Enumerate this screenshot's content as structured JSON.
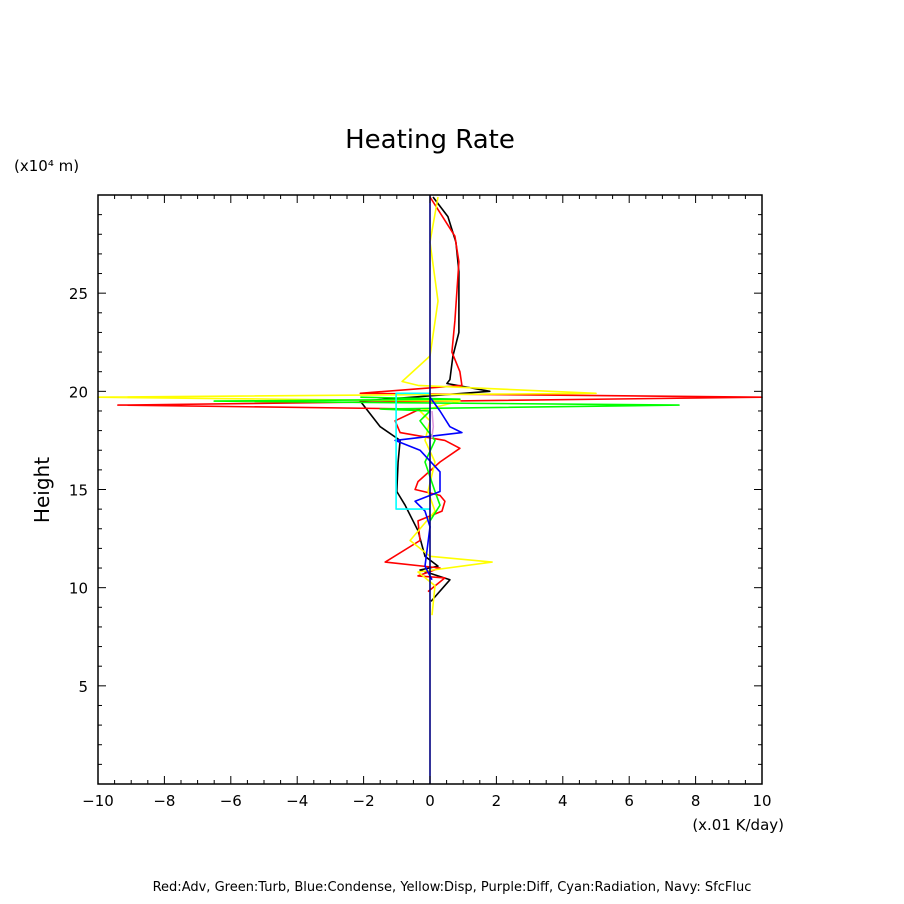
{
  "chart_data": {
    "type": "line",
    "title": "Heating Rate",
    "xlabel": "(x.01 K/day)",
    "ylabel": "Height",
    "y_unit_label": "(x10⁴ m)",
    "xlim": [
      -10,
      10
    ],
    "ylim": [
      0,
      30
    ],
    "xticks": [
      -10,
      -8,
      -6,
      -4,
      -2,
      0,
      2,
      4,
      6,
      8,
      10
    ],
    "xtick_labels": [
      "−10",
      "−8",
      "−6",
      "−4",
      "−2",
      "0",
      "2",
      "4",
      "6",
      "8",
      "10"
    ],
    "yticks": [
      5,
      10,
      15,
      20,
      25
    ],
    "ytick_labels": [
      "5",
      "10",
      "15",
      "20",
      "25"
    ],
    "grid": false,
    "legend_text": "Red:Adv, Green:Turb, Blue:Condense, Yellow:Disp, Purple:Diff, Cyan:Radiation, Navy: SfcFluc",
    "series": [
      {
        "name": "Black",
        "color": "#000000",
        "points": [
          [
            0.09,
            29.9
          ],
          [
            0.54,
            28.9
          ],
          [
            0.78,
            27.6
          ],
          [
            0.87,
            26.1
          ],
          [
            0.87,
            23.0
          ],
          [
            0.69,
            21.8
          ],
          [
            0.6,
            20.6
          ],
          [
            0.51,
            20.4
          ],
          [
            1.8,
            20.0
          ],
          [
            -2.1,
            19.5
          ],
          [
            -1.5,
            18.2
          ],
          [
            -0.9,
            17.5
          ],
          [
            -0.96,
            16.4
          ],
          [
            -1.0,
            14.9
          ],
          [
            -0.75,
            14.2
          ],
          [
            -0.36,
            12.9
          ],
          [
            -0.15,
            11.6
          ],
          [
            0.24,
            11.1
          ],
          [
            -0.3,
            10.9
          ],
          [
            0.6,
            10.4
          ],
          [
            0.03,
            9.3
          ]
        ]
      },
      {
        "name": "Adv",
        "color": "#ff0000",
        "points": [
          [
            0.0,
            29.9
          ],
          [
            0.3,
            29.1
          ],
          [
            0.75,
            27.9
          ],
          [
            0.87,
            26.6
          ],
          [
            0.75,
            23.6
          ],
          [
            0.66,
            22.0
          ],
          [
            0.9,
            21.0
          ],
          [
            0.96,
            20.3
          ],
          [
            -2.1,
            19.9
          ],
          [
            10,
            19.7
          ],
          [
            -9.4,
            19.3
          ],
          [
            -0.3,
            19.1
          ],
          [
            -1.05,
            18.5
          ],
          [
            -0.9,
            17.9
          ],
          [
            0.45,
            17.5
          ],
          [
            0.9,
            17.1
          ],
          [
            0.3,
            16.4
          ],
          [
            -0.36,
            15.4
          ],
          [
            -0.45,
            15.0
          ],
          [
            0.3,
            14.7
          ],
          [
            0.45,
            14.4
          ],
          [
            0.36,
            13.9
          ],
          [
            -0.36,
            13.4
          ],
          [
            -0.3,
            12.4
          ],
          [
            -1.35,
            11.3
          ],
          [
            0.3,
            11.0
          ],
          [
            -0.36,
            10.6
          ],
          [
            0.45,
            10.5
          ],
          [
            -0.06,
            9.8
          ]
        ]
      },
      {
        "name": "Disp",
        "color": "#ffff00",
        "points": [
          [
            0.24,
            29.9
          ],
          [
            0.0,
            27.6
          ],
          [
            0.24,
            24.6
          ],
          [
            0.0,
            21.8
          ],
          [
            -0.84,
            20.5
          ],
          [
            -0.36,
            20.3
          ],
          [
            5,
            19.9
          ],
          [
            -10,
            19.7
          ],
          [
            0.9,
            19.5
          ],
          [
            -0.3,
            19.0
          ],
          [
            0.0,
            18.5
          ],
          [
            -0.15,
            17.5
          ],
          [
            0.15,
            16.4
          ],
          [
            -0.06,
            14.9
          ],
          [
            0.15,
            13.9
          ],
          [
            -0.6,
            12.4
          ],
          [
            0.0,
            11.6
          ],
          [
            1.87,
            11.3
          ],
          [
            -0.36,
            10.8
          ],
          [
            0.15,
            10.1
          ],
          [
            0.06,
            8.6
          ]
        ]
      },
      {
        "name": "Turb",
        "color": "#00ff00",
        "points": [
          [
            -2.1,
            19.7
          ],
          [
            0.9,
            19.6
          ],
          [
            -6.5,
            19.5
          ],
          [
            7.5,
            19.3
          ],
          [
            -1.5,
            19.1
          ],
          [
            0.0,
            19.0
          ],
          [
            -0.3,
            18.5
          ],
          [
            0.15,
            17.5
          ],
          [
            -0.15,
            16.4
          ],
          [
            0.15,
            14.9
          ],
          [
            0.3,
            14.2
          ],
          [
            0.0,
            13.4
          ]
        ]
      },
      {
        "name": "Condense",
        "color": "#0000ff",
        "points": [
          [
            0.0,
            19.7
          ],
          [
            0.3,
            19.0
          ],
          [
            0.6,
            18.2
          ],
          [
            0.96,
            17.9
          ],
          [
            -1.05,
            17.5
          ],
          [
            -0.3,
            17.0
          ],
          [
            0.3,
            15.9
          ],
          [
            0.3,
            14.9
          ],
          [
            -0.45,
            14.4
          ],
          [
            -0.15,
            13.9
          ],
          [
            0.0,
            13.1
          ],
          [
            -0.15,
            11.1
          ],
          [
            0.06,
            10.4
          ]
        ]
      },
      {
        "name": "Diff",
        "color": "#dd99dd",
        "points": [
          [
            0.06,
            19.0
          ],
          [
            0.1,
            18.2
          ],
          [
            0.05,
            17.6
          ]
        ]
      },
      {
        "name": "Radiation",
        "color": "#00ffff",
        "points": [
          [
            0.0,
            19.9
          ],
          [
            -1.02,
            19.9
          ],
          [
            -1.02,
            14.0
          ],
          [
            0.0,
            14.0
          ]
        ]
      },
      {
        "name": "SfcFluc",
        "color": "#000080",
        "points": [
          [
            0.0,
            0
          ],
          [
            0.0,
            30
          ]
        ]
      }
    ]
  }
}
